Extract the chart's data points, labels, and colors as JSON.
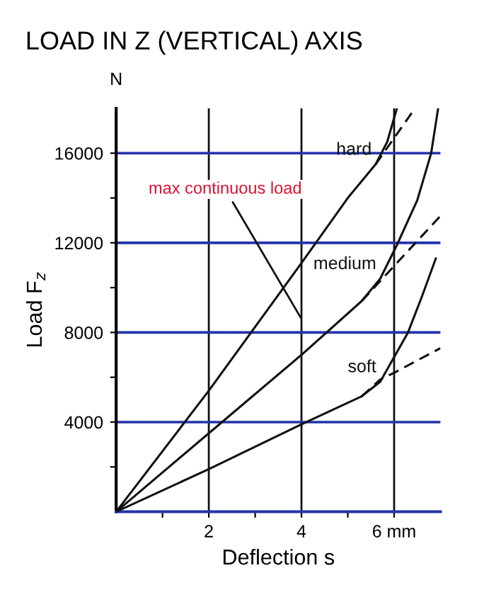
{
  "chart_data": {
    "type": "line",
    "title": "LOAD IN Z (VERTICAL) AXIS",
    "xlabel": "Deflection s",
    "ylabel": "Load F$_{z}$",
    "annotations": [
      "N",
      "max continuous load"
    ],
    "xlim": [
      0,
      7
    ],
    "ylim": [
      0,
      18000
    ],
    "xticks": [
      {
        "value": 1,
        "label": null
      },
      2,
      {
        "value": 3,
        "label": null
      },
      4,
      {
        "value": 5,
        "label": null
      },
      {
        "value": 6,
        "label": "6 mm"
      }
    ],
    "yticks": [
      {
        "value": 2000,
        "label": null
      },
      4000,
      {
        "value": 6000,
        "label": null
      },
      8000,
      {
        "value": 10000,
        "label": null
      },
      12000,
      {
        "value": 14000,
        "label": null
      },
      16000
    ],
    "grid": true,
    "marker": "none",
    "series": [
      {
        "name": "hard",
        "color": "#111111",
        "line_style": "solid",
        "x": [
          0,
          2,
          4,
          5,
          5.6,
          5.85,
          6.06
        ],
        "values": [
          0,
          5400,
          11100,
          14000,
          15500,
          16500,
          18000
        ]
      },
      {
        "color": "#111111",
        "line_style": "dashed",
        "x": [
          5.6,
          6.45
        ],
        "values": [
          15500,
          18000
        ]
      },
      {
        "name": "medium",
        "color": "#111111",
        "line_style": "solid",
        "x": [
          0,
          2,
          4,
          5.3,
          5.7,
          6.06,
          6.5,
          6.8,
          6.95
        ],
        "values": [
          0,
          3500,
          7000,
          9400,
          10400,
          11900,
          13900,
          16000,
          18000
        ]
      },
      {
        "color": "#111111",
        "line_style": "dashed",
        "x": [
          5.3,
          7.0
        ],
        "values": [
          9400,
          13200
        ]
      },
      {
        "name": "soft",
        "color": "#111111",
        "line_style": "solid",
        "x": [
          0,
          2,
          4,
          5.3,
          5.7,
          6.0,
          6.3,
          6.6,
          6.9
        ],
        "values": [
          0,
          1900,
          3900,
          5150,
          5800,
          6900,
          8000,
          9600,
          11300
        ]
      },
      {
        "color": "#111111",
        "line_style": "dashed",
        "x": [
          5.3,
          5.7,
          6.0,
          7.0
        ],
        "values": [
          5150,
          5900,
          6200,
          7300
        ]
      }
    ]
  }
}
